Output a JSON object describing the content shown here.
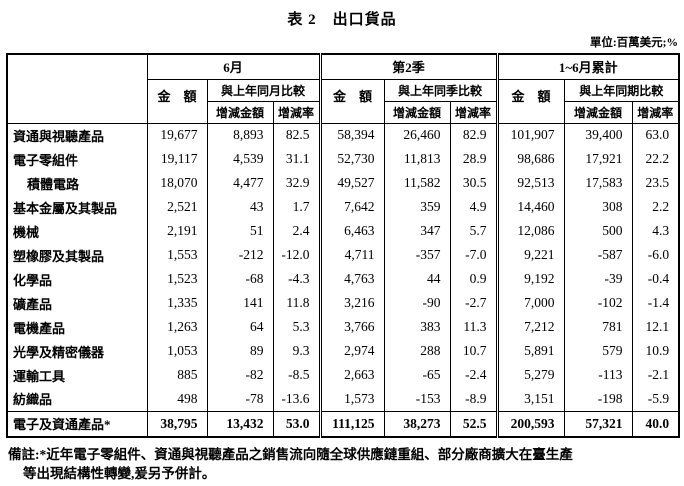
{
  "title": "表 2　出口貨品",
  "unit_note": "單位:百萬美元;%",
  "table": {
    "amount_label": "金　額",
    "change_amount_label": "增減金額",
    "change_rate_label": "增減率",
    "groups": [
      {
        "label": "6月",
        "compare_label": "與上年同月比較"
      },
      {
        "label": "第2季",
        "compare_label": "與上年同季比較"
      },
      {
        "label": "1~6月累計",
        "compare_label": "與上年同期比較"
      }
    ],
    "rows": [
      {
        "label": "資通與視聽產品",
        "indent": false,
        "total": false,
        "values": [
          "19,677",
          "8,893",
          "82.5",
          "58,394",
          "26,460",
          "82.9",
          "101,907",
          "39,400",
          "63.0"
        ]
      },
      {
        "label": "電子零組件",
        "indent": false,
        "total": false,
        "values": [
          "19,117",
          "4,539",
          "31.1",
          "52,730",
          "11,813",
          "28.9",
          "98,686",
          "17,921",
          "22.2"
        ]
      },
      {
        "label": "積體電路",
        "indent": true,
        "total": false,
        "values": [
          "18,070",
          "4,477",
          "32.9",
          "49,527",
          "11,582",
          "30.5",
          "92,513",
          "17,583",
          "23.5"
        ]
      },
      {
        "label": "基本金屬及其製品",
        "indent": false,
        "total": false,
        "values": [
          "2,521",
          "43",
          "1.7",
          "7,642",
          "359",
          "4.9",
          "14,460",
          "308",
          "2.2"
        ]
      },
      {
        "label": "機械",
        "indent": false,
        "total": false,
        "values": [
          "2,191",
          "51",
          "2.4",
          "6,463",
          "347",
          "5.7",
          "12,086",
          "500",
          "4.3"
        ]
      },
      {
        "label": "塑橡膠及其製品",
        "indent": false,
        "total": false,
        "values": [
          "1,553",
          "-212",
          "-12.0",
          "4,711",
          "-357",
          "-7.0",
          "9,221",
          "-587",
          "-6.0"
        ]
      },
      {
        "label": "化學品",
        "indent": false,
        "total": false,
        "values": [
          "1,523",
          "-68",
          "-4.3",
          "4,763",
          "44",
          "0.9",
          "9,192",
          "-39",
          "-0.4"
        ]
      },
      {
        "label": "礦產品",
        "indent": false,
        "total": false,
        "values": [
          "1,335",
          "141",
          "11.8",
          "3,216",
          "-90",
          "-2.7",
          "7,000",
          "-102",
          "-1.4"
        ]
      },
      {
        "label": "電機產品",
        "indent": false,
        "total": false,
        "values": [
          "1,263",
          "64",
          "5.3",
          "3,766",
          "383",
          "11.3",
          "7,212",
          "781",
          "12.1"
        ]
      },
      {
        "label": "光學及精密儀器",
        "indent": false,
        "total": false,
        "values": [
          "1,053",
          "89",
          "9.3",
          "2,974",
          "288",
          "10.7",
          "5,891",
          "579",
          "10.9"
        ]
      },
      {
        "label": "運輸工具",
        "indent": false,
        "total": false,
        "values": [
          "885",
          "-82",
          "-8.5",
          "2,663",
          "-65",
          "-2.4",
          "5,279",
          "-113",
          "-2.1"
        ]
      },
      {
        "label": "紡織品",
        "indent": false,
        "total": false,
        "values": [
          "498",
          "-78",
          "-13.6",
          "1,573",
          "-153",
          "-8.9",
          "3,151",
          "-198",
          "-5.9"
        ]
      },
      {
        "label": "電子及資通產品*",
        "indent": false,
        "total": true,
        "values": [
          "38,795",
          "13,432",
          "53.0",
          "111,125",
          "38,273",
          "52.5",
          "200,593",
          "57,321",
          "40.0"
        ]
      }
    ]
  },
  "footnote_lines": [
    "備註:*近年電子零組件、資通與視聽產品之銷售流向隨全球供應鏈重組、部分廠商擴大在臺生產",
    "等出現結構性轉變,爰另予併計。"
  ]
}
